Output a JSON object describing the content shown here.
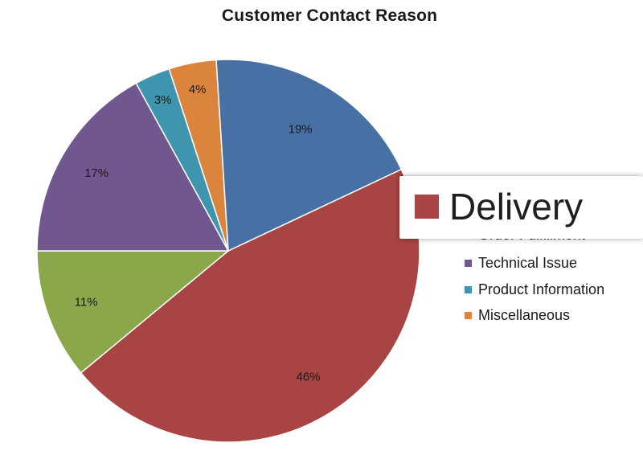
{
  "chart_data": {
    "type": "pie",
    "title": "Customer Contact Reason",
    "slices": [
      {
        "label": "Delivery",
        "value": 46,
        "display": "46%",
        "color": "#A84444"
      },
      {
        "label": "Order Fulfillment",
        "value": 11,
        "display": "11%",
        "color": "#8AA84A"
      },
      {
        "label": "Technical Issue",
        "value": 17,
        "display": "17%",
        "color": "#71578F"
      },
      {
        "label": "Product Information",
        "value": 3,
        "display": "3%",
        "color": "#3E95AD"
      },
      {
        "label": "Miscellaneous",
        "value": 4,
        "display": "4%",
        "color": "#DB843D"
      },
      {
        "label": "",
        "value": 19,
        "display": "19%",
        "color": "#4770A5"
      }
    ],
    "legend": {
      "placement": "right",
      "items": [
        {
          "label": "Order Fulfillment",
          "color": "#8AA84A"
        },
        {
          "label": "Technical Issue",
          "color": "#71578F"
        },
        {
          "label": "Product Information",
          "color": "#3E95AD"
        },
        {
          "label": "Miscellaneous",
          "color": "#DB843D"
        }
      ]
    },
    "magnified_legend_entry": {
      "label": "Delivery",
      "color": "#A84444"
    }
  }
}
